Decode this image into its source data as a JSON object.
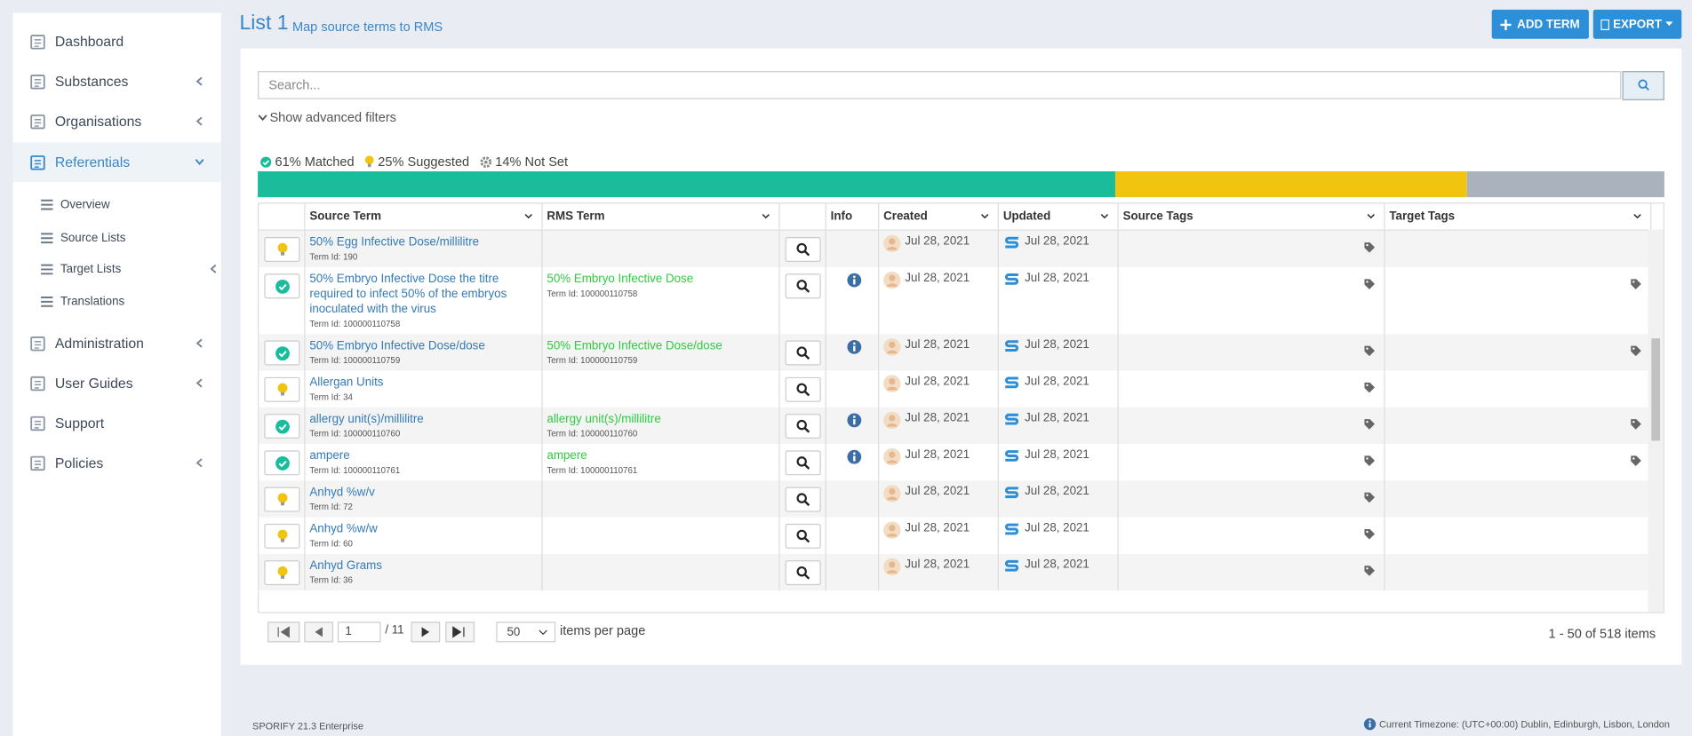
{
  "sidebar": {
    "items": [
      "Dashboard",
      "Substances",
      "Organisations",
      "Referentials",
      "Administration",
      "User Guides",
      "Support",
      "Policies"
    ],
    "active": "Referentials",
    "subitems": [
      "Overview",
      "Source Lists",
      "Target Lists",
      "Translations"
    ]
  },
  "header": {
    "title": "List 1",
    "subtitle": "Map source terms to RMS",
    "buttons": [
      "ADD TERM",
      "EXPORT"
    ]
  },
  "search": {
    "placeholder": "Search...",
    "filters_toggle": "Show advanced filters"
  },
  "stats": [
    {
      "value": 61,
      "label": "61% Matched",
      "color": "#1abc9c"
    },
    {
      "value": 25,
      "label": "25% Suggested",
      "color": "#f1c40f"
    },
    {
      "value": 14,
      "label": "14% Not Set",
      "color": "#aab2bd"
    }
  ],
  "table": {
    "columns": [
      "Source Term",
      "RMS Term",
      "Info",
      "Created",
      "Updated",
      "Source Tags",
      "Target Tags"
    ],
    "rows": [
      {
        "status": "suggested",
        "source_term": "50% Egg Infective Dose/millilitre",
        "source_id": "Term Id: 190",
        "created": "Jul 28, 2021",
        "updated": "Jul 28, 2021"
      },
      {
        "status": "matched",
        "source_term": "50% Embryo Infective Dose the titre required to infect 50% of the embryos inoculated with the virus",
        "source_id": "Term Id: 100000110758",
        "rms_term": "50% Embryo Infective Dose",
        "rms_id": "Term Id: 100000110758",
        "created": "Jul 28, 2021",
        "updated": "Jul 28, 2021"
      },
      {
        "status": "matched",
        "source_term": "50% Embryo Infective Dose/dose",
        "source_id": "Term Id: 100000110759",
        "rms_term": "50% Embryo Infective Dose/dose",
        "rms_id": "Term Id: 100000110759",
        "created": "Jul 28, 2021",
        "updated": "Jul 28, 2021"
      },
      {
        "status": "suggested",
        "source_term": "Allergan Units",
        "source_id": "Term Id: 34",
        "created": "Jul 28, 2021",
        "updated": "Jul 28, 2021"
      },
      {
        "status": "matched",
        "source_term": "allergy unit(s)/millilitre",
        "source_id": "Term Id: 100000110760",
        "rms_term": "allergy unit(s)/millilitre",
        "rms_id": "Term Id: 100000110760",
        "created": "Jul 28, 2021",
        "updated": "Jul 28, 2021"
      },
      {
        "status": "matched",
        "source_term": "ampere",
        "source_id": "Term Id: 100000110761",
        "rms_term": "ampere",
        "rms_id": "Term Id: 100000110761",
        "created": "Jul 28, 2021",
        "updated": "Jul 28, 2021"
      },
      {
        "status": "suggested",
        "source_term": "Anhyd %w/v",
        "source_id": "Term Id: 72",
        "created": "Jul 28, 2021",
        "updated": "Jul 28, 2021"
      },
      {
        "status": "suggested",
        "source_term": "Anhyd %w/w",
        "source_id": "Term Id: 60",
        "created": "Jul 28, 2021",
        "updated": "Jul 28, 2021"
      },
      {
        "status": "suggested",
        "source_term": "Anhyd Grams",
        "source_id": "Term Id: 36",
        "created": "Jul 28, 2021",
        "updated": "Jul 28, 2021"
      }
    ]
  },
  "pagination": {
    "page": "1",
    "total_pages": "/ 11",
    "page_size": "50",
    "page_size_label": "items per page",
    "summary": "1 - 50 of 518 items"
  },
  "footer": {
    "version": "SPORIFY 21.3 Enterprise",
    "timezone": "Current Timezone: (UTC+00:00) Dublin, Edinburgh, Lisbon, London"
  }
}
